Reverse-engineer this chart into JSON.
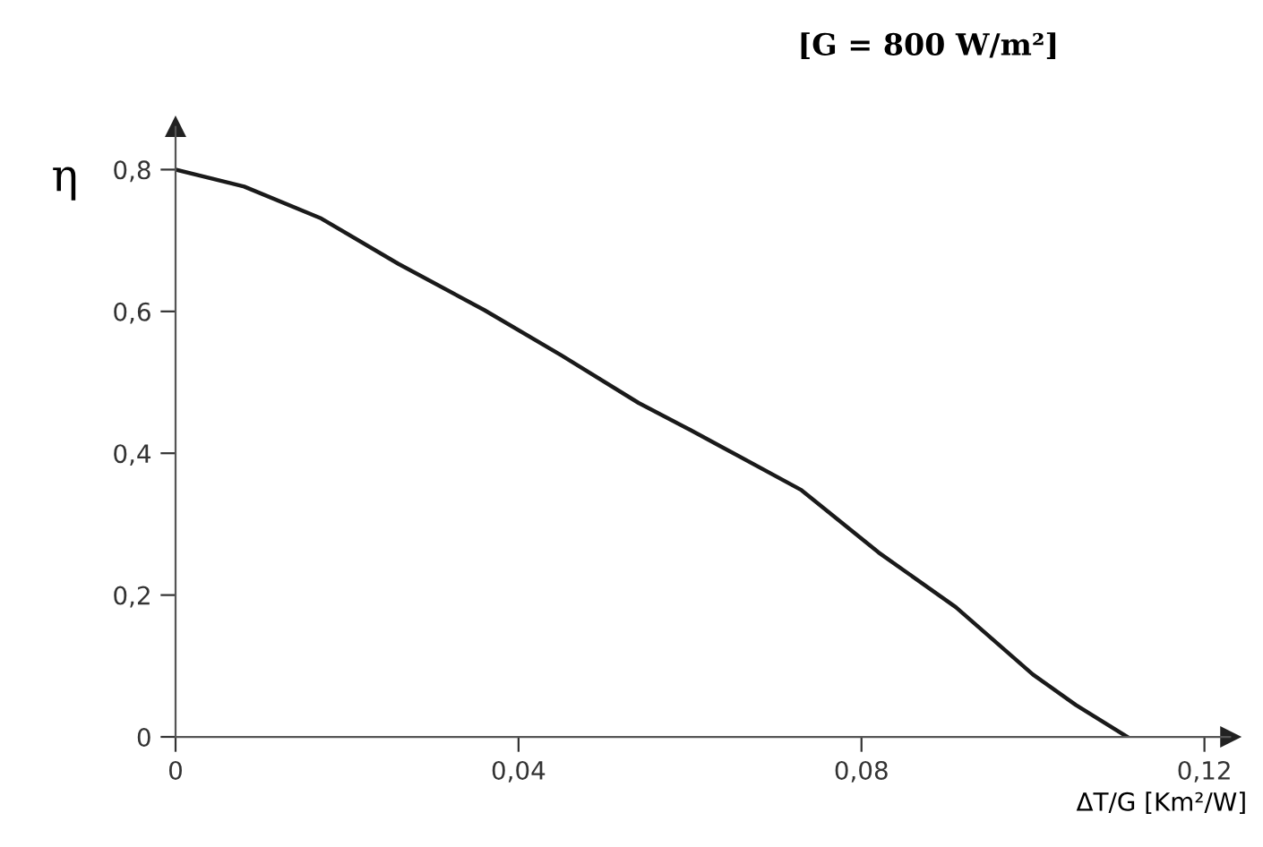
{
  "chart_data": {
    "type": "line",
    "title": "[G = 800 W/m²]",
    "xlabel": "ΔT/G [Km²/W]",
    "ylabel": "η",
    "x": [
      0,
      0.008,
      0.017,
      0.026,
      0.036,
      0.045,
      0.054,
      0.06,
      0.064,
      0.073,
      0.082,
      0.091,
      0.1,
      0.105,
      0.111
    ],
    "series": [
      {
        "color": "#1a1a1a",
        "values": [
          0.8,
          0.776,
          0.731,
          0.667,
          0.602,
          0.538,
          0.471,
          0.433,
          0.407,
          0.348,
          0.26,
          0.183,
          0.088,
          0.045,
          0
        ]
      }
    ],
    "xlim": [
      0,
      0.123
    ],
    "ylim": [
      0,
      0.86
    ],
    "xticks": [
      0,
      {
        "value": 0.04,
        "label": "0,04"
      },
      {
        "value": 0.08,
        "label": "0,08"
      },
      {
        "value": 0.12,
        "label": "0,12"
      }
    ],
    "yticks": [
      0,
      {
        "value": 0.2,
        "label": "0,2"
      },
      {
        "value": 0.4,
        "label": "0,4"
      },
      {
        "value": 0.6,
        "label": "0,6"
      },
      {
        "value": 0.8,
        "label": "0,8"
      }
    ],
    "grid": false,
    "legend": false,
    "marker": "none",
    "line_style": "solid"
  }
}
